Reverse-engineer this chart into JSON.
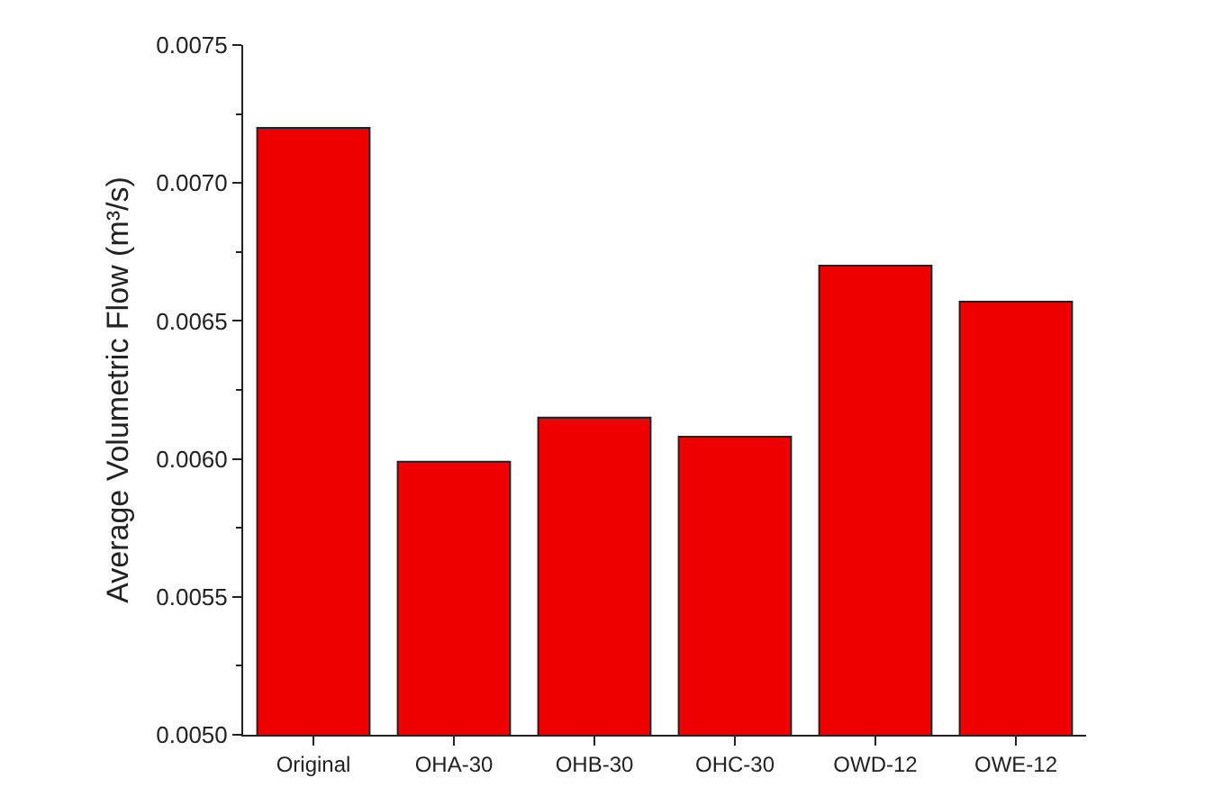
{
  "chart_data": {
    "type": "bar",
    "ylabel": "Average Volumetric Flow (m³/s)",
    "categories": [
      "Original",
      "OHA-30",
      "OHB-30",
      "OHC-30",
      "OWD-12",
      "OWE-12"
    ],
    "values": [
      0.0072,
      0.00599,
      0.00615,
      0.00608,
      0.0067,
      0.00657
    ],
    "color": "#ee0000",
    "ylim": [
      0.005,
      0.0075
    ],
    "yticks": [
      {
        "value": 0.005,
        "label": "0.0050"
      },
      {
        "value": 0.0055,
        "label": "0.0055"
      },
      {
        "value": 0.006,
        "label": "0.0060"
      },
      {
        "value": 0.0065,
        "label": "0.0065"
      },
      {
        "value": 0.007,
        "label": "0.0070"
      },
      {
        "value": 0.0075,
        "label": "0.0075"
      }
    ],
    "grid": false
  }
}
